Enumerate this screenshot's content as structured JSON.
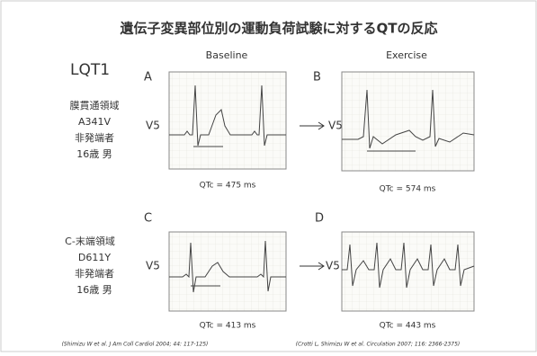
{
  "header": {
    "title": "遺伝子変異部位別の運動負荷試験に対するQTの反応",
    "syndrome": "LQT1"
  },
  "columns": [
    "Baseline",
    "Exercise"
  ],
  "rows": [
    {
      "lines": [
        "膜貫通領域",
        "A341V",
        "非発端者",
        "16歳 男"
      ]
    },
    {
      "lines": [
        "C-末端領域",
        "D611Y",
        "非発端者",
        "16歳 男"
      ]
    }
  ],
  "panels": [
    {
      "letter": "A",
      "lead": "V5",
      "qtc": "QTc = 475 ms"
    },
    {
      "letter": "B",
      "lead": "V5",
      "qtc": "QTc = 574 ms"
    },
    {
      "letter": "C",
      "lead": "V5",
      "qtc": "QTc = 413 ms"
    },
    {
      "letter": "D",
      "lead": "V5",
      "qtc": "QTc = 443 ms"
    }
  ],
  "citations": [
    "(Shimizu W et al. J Am Coll Cardiol 2004; 44: 117-125)",
    "(Crotti L, Shimizu W et al. Circulation 2007; 116: 2366-2375)"
  ]
}
